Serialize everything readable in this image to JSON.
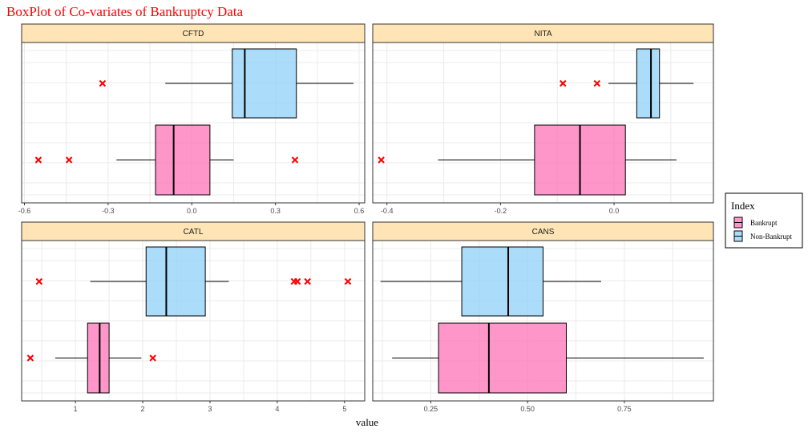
{
  "title": "BoxPlot of Co-variates of Bankruptcy Data",
  "title_color": "#ff0000",
  "xlabel": "value",
  "legend": {
    "title": "Index",
    "items": [
      {
        "label": "Bankrupt",
        "color": "#ff69b4"
      },
      {
        "label": "Non-Bankrupt",
        "color": "#87cefa"
      }
    ]
  },
  "colors": {
    "strip_bg": "#ffe4b5",
    "grid": "#ebebeb",
    "outlier": "#ff0000",
    "Bankrupt": "#ff69b4",
    "Non-Bankrupt": "#87cefa"
  },
  "chart_data": {
    "type": "boxplot",
    "orientation": "horizontal",
    "categories_per_panel": [
      "Bankrupt",
      "Non-Bankrupt"
    ],
    "panels": [
      {
        "name": "CFTD",
        "xlim": [
          -0.61,
          0.62
        ],
        "ticks": [
          -0.6,
          -0.3,
          0.0,
          0.3,
          0.6
        ],
        "tick_labels": [
          "-0.6",
          "-0.3",
          "0.0",
          "0.3",
          "0.6"
        ],
        "boxes": [
          {
            "group": "Bankrupt",
            "whisker_low": -0.27,
            "q1": -0.13,
            "median": -0.065,
            "q3": 0.065,
            "whisker_high": 0.15,
            "outliers": [
              -0.55,
              -0.44,
              0.37
            ]
          },
          {
            "group": "Non-Bankrupt",
            "whisker_low": -0.095,
            "q1": 0.145,
            "median": 0.19,
            "q3": 0.375,
            "whisker_high": 0.58,
            "outliers": [
              -0.32
            ]
          }
        ]
      },
      {
        "name": "NITA",
        "xlim": [
          -0.425,
          0.175
        ],
        "ticks": [
          -0.4,
          -0.2,
          0.0
        ],
        "tick_labels": [
          "-0.4",
          "-0.2",
          "0.0"
        ],
        "boxes": [
          {
            "group": "Bankrupt",
            "whisker_low": -0.31,
            "q1": -0.14,
            "median": -0.06,
            "q3": 0.02,
            "whisker_high": 0.11,
            "outliers": [
              -0.41
            ]
          },
          {
            "group": "Non-Bankrupt",
            "whisker_low": -0.01,
            "q1": 0.04,
            "median": 0.065,
            "q3": 0.08,
            "whisker_high": 0.14,
            "outliers": [
              -0.09,
              -0.03
            ]
          }
        ]
      },
      {
        "name": "CATL",
        "xlim": [
          0.2,
          5.3
        ],
        "ticks": [
          1,
          2,
          3,
          4,
          5
        ],
        "tick_labels": [
          "1",
          "2",
          "3",
          "4",
          "5"
        ],
        "boxes": [
          {
            "group": "Bankrupt",
            "whisker_low": 0.7,
            "q1": 1.18,
            "median": 1.36,
            "q3": 1.5,
            "whisker_high": 1.98,
            "outliers": [
              0.33,
              2.15
            ]
          },
          {
            "group": "Non-Bankrupt",
            "whisker_low": 1.22,
            "q1": 2.05,
            "median": 2.35,
            "q3": 2.93,
            "whisker_high": 3.28,
            "outliers": [
              0.46,
              4.25,
              4.3,
              4.45,
              5.05
            ]
          }
        ]
      },
      {
        "name": "CANS",
        "xlim": [
          0.1,
          0.98
        ],
        "ticks": [
          0.25,
          0.5,
          0.75
        ],
        "tick_labels": [
          "0.25",
          "0.50",
          "0.75"
        ],
        "boxes": [
          {
            "group": "Bankrupt",
            "whisker_low": 0.15,
            "q1": 0.27,
            "median": 0.4,
            "q3": 0.6,
            "whisker_high": 0.955,
            "outliers": []
          },
          {
            "group": "Non-Bankrupt",
            "whisker_low": 0.12,
            "q1": 0.33,
            "median": 0.45,
            "q3": 0.54,
            "whisker_high": 0.69,
            "outliers": []
          }
        ]
      }
    ]
  }
}
